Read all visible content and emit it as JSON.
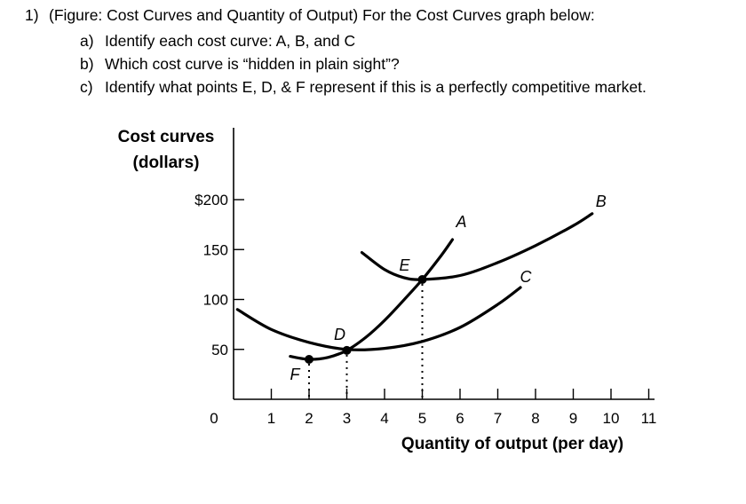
{
  "question": {
    "number": "1)",
    "stem": "(Figure: Cost Curves and Quantity of Output) For the Cost Curves graph below:",
    "parts": [
      {
        "label": "a)",
        "text": "Identify each cost curve: A, B, and C"
      },
      {
        "label": "b)",
        "text": "Which cost curve is “hidden in plain sight”?"
      },
      {
        "label": "c)",
        "text": "Identify what points E, D, & F represent if this is a perfectly competitive market."
      }
    ]
  },
  "chart_data": {
    "type": "line",
    "ylabel_lines": [
      "Cost curves",
      "(dollars)"
    ],
    "xlabel": "Quantity of output (per day)",
    "xlim": [
      0,
      11
    ],
    "ylim": [
      0,
      200
    ],
    "x_ticks": [
      {
        "value": 0,
        "label": "0"
      },
      {
        "value": 1,
        "label": "1"
      },
      {
        "value": 2,
        "label": "2"
      },
      {
        "value": 3,
        "label": "3"
      },
      {
        "value": 4,
        "label": "4"
      },
      {
        "value": 5,
        "label": "5"
      },
      {
        "value": 6,
        "label": "6"
      },
      {
        "value": 7,
        "label": "7"
      },
      {
        "value": 8,
        "label": "8"
      },
      {
        "value": 9,
        "label": "9"
      },
      {
        "value": 10,
        "label": "10"
      },
      {
        "value": 11,
        "label": "11"
      }
    ],
    "y_ticks": [
      {
        "value": 50,
        "label": "50"
      },
      {
        "value": 100,
        "label": "100"
      },
      {
        "value": 150,
        "label": "150"
      },
      {
        "value": 200,
        "label": "$200"
      }
    ],
    "grid": false,
    "series": [
      {
        "name": "A",
        "points": [
          [
            1.5,
            43
          ],
          [
            2.0,
            40
          ],
          [
            2.5,
            42
          ],
          [
            3.0,
            49
          ],
          [
            3.5,
            62
          ],
          [
            4.0,
            79
          ],
          [
            4.5,
            99
          ],
          [
            5.0,
            120
          ],
          [
            5.5,
            144
          ],
          [
            5.8,
            160
          ]
        ]
      },
      {
        "name": "B",
        "points": [
          [
            3.4,
            147
          ],
          [
            4.0,
            130
          ],
          [
            4.5,
            122
          ],
          [
            5.0,
            120
          ],
          [
            6.0,
            124
          ],
          [
            7.0,
            137
          ],
          [
            8.0,
            154
          ],
          [
            9.0,
            174
          ],
          [
            9.5,
            186
          ]
        ]
      },
      {
        "name": "C",
        "points": [
          [
            0.1,
            90
          ],
          [
            1.0,
            70
          ],
          [
            2.0,
            57
          ],
          [
            3.0,
            50
          ],
          [
            4.0,
            51
          ],
          [
            5.0,
            58
          ],
          [
            6.0,
            72
          ],
          [
            7.0,
            95
          ],
          [
            7.6,
            112
          ]
        ]
      }
    ],
    "points": [
      {
        "name": "E",
        "x": 5.0,
        "y": 120
      },
      {
        "name": "D",
        "x": 3.0,
        "y": 49
      },
      {
        "name": "F",
        "x": 2.0,
        "y": 40
      }
    ]
  }
}
